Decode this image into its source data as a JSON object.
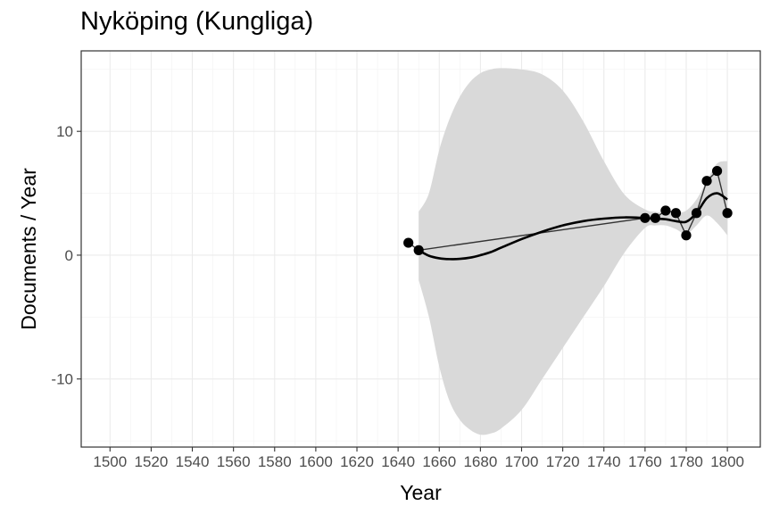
{
  "chart_data": {
    "type": "scatter",
    "title": "Nyköping (Kungliga)",
    "xlabel": "Year",
    "ylabel": "Documents / Year",
    "xlim": [
      1486,
      1816
    ],
    "ylim": [
      -15.5,
      16.5
    ],
    "x_ticks": [
      1500,
      1520,
      1540,
      1560,
      1580,
      1600,
      1620,
      1640,
      1660,
      1680,
      1700,
      1720,
      1740,
      1760,
      1780,
      1800
    ],
    "x_tick_labels": [
      "1500",
      "1520",
      "1540",
      "1560",
      "1580",
      "1600",
      "1620",
      "1640",
      "1660",
      "1680",
      "1700",
      "1720",
      "1740",
      "1760",
      "1780",
      "1800"
    ],
    "y_ticks": [
      -10,
      0,
      10
    ],
    "y_tick_labels": [
      "-10",
      "0",
      "10"
    ],
    "grid": true,
    "points": {
      "x": [
        1645,
        1650,
        1760,
        1765,
        1770,
        1775,
        1780,
        1785,
        1790,
        1795,
        1800
      ],
      "y": [
        1.0,
        0.4,
        3.0,
        3.0,
        3.6,
        3.4,
        1.6,
        3.4,
        6.0,
        6.8,
        3.4
      ]
    },
    "smooth": {
      "x": [
        1650,
        1655,
        1660,
        1665,
        1670,
        1675,
        1680,
        1685,
        1690,
        1700,
        1710,
        1720,
        1730,
        1740,
        1750,
        1760,
        1765,
        1770,
        1775,
        1780,
        1785,
        1790,
        1795,
        1800
      ],
      "y": [
        0.4,
        -0.05,
        -0.25,
        -0.32,
        -0.3,
        -0.2,
        0.0,
        0.25,
        0.6,
        1.3,
        1.9,
        2.4,
        2.75,
        2.95,
        3.05,
        3.0,
        2.95,
        2.9,
        2.75,
        2.7,
        3.4,
        4.6,
        5.0,
        4.5
      ],
      "lower": [
        -2.0,
        -5.0,
        -9.0,
        -11.8,
        -13.3,
        -14.1,
        -14.5,
        -14.4,
        -14.0,
        -12.5,
        -10.0,
        -7.5,
        -5.0,
        -2.5,
        0.2,
        2.2,
        2.4,
        2.4,
        2.1,
        1.7,
        2.4,
        3.2,
        2.6,
        1.6
      ],
      "upper": [
        3.5,
        5.0,
        8.5,
        11.0,
        12.8,
        14.0,
        14.7,
        15.0,
        15.1,
        15.0,
        14.6,
        13.3,
        10.8,
        7.6,
        4.9,
        3.7,
        3.5,
        3.4,
        3.4,
        3.6,
        4.5,
        6.0,
        7.4,
        7.6
      ]
    }
  }
}
